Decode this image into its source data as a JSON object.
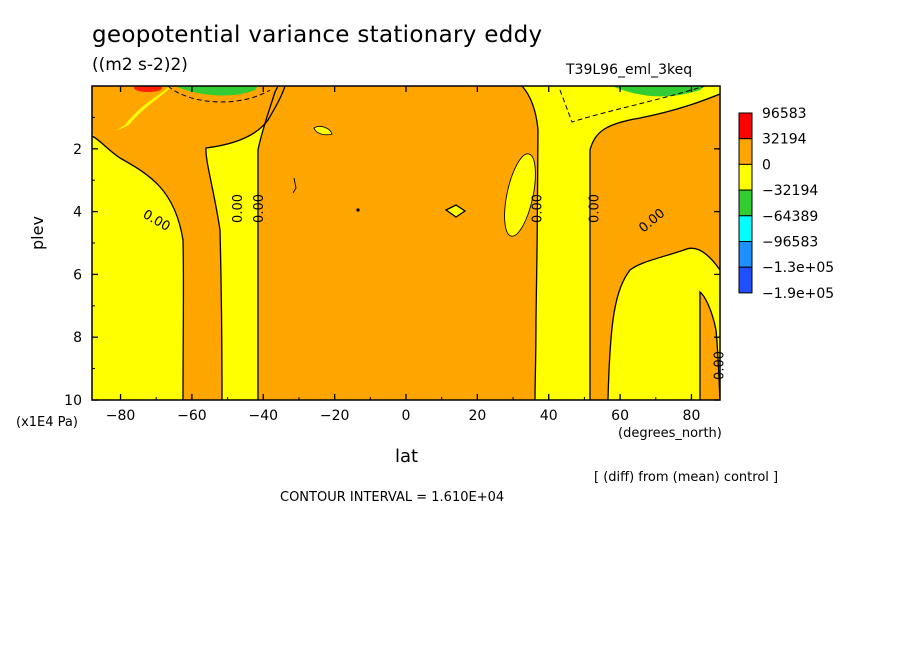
{
  "header": {
    "title": "geopotential variance stationary eddy",
    "units": "((m2 s-2)2)",
    "experiment": "T39L96_eml_3keq"
  },
  "footer": {
    "diff_note": "[ (diff) from (mean) control ]",
    "contour_interval": "CONTOUR INTERVAL = 1.610E+04"
  },
  "chart_data": {
    "type": "contour",
    "xlabel": "lat",
    "xunit": "(degrees_north)",
    "ylabel": "plev",
    "yunit": "(x1E4 Pa)",
    "xlim": [
      -88,
      88
    ],
    "ylim": [
      10,
      0
    ],
    "xticks": [
      -80,
      -60,
      -40,
      -20,
      0,
      20,
      40,
      60,
      80
    ],
    "xtick_labels": [
      "−80",
      "−60",
      "−40",
      "−20",
      "0",
      "20",
      "40",
      "60",
      "80"
    ],
    "yticks": [
      2,
      4,
      6,
      8,
      10
    ],
    "ytick_labels": [
      "2",
      "4",
      "6",
      "8",
      "10"
    ],
    "contour_labels": [
      {
        "text": "0.00",
        "lat": -70,
        "plev": 4.3
      },
      {
        "text": "0.00",
        "lat": -47,
        "plev": 3.9
      },
      {
        "text": "0.00",
        "lat": -41,
        "plev": 3.9
      },
      {
        "text": "0.00",
        "lat": 37,
        "plev": 3.9
      },
      {
        "text": "0.00",
        "lat": 53,
        "plev": 3.9
      },
      {
        "text": "0.00",
        "lat": 69,
        "plev": 4.3
      },
      {
        "text": "0.00",
        "lat": 88,
        "plev": 8.9
      }
    ],
    "colorbar": {
      "levels": [
        "96583",
        "32194",
        "0",
        "−32194",
        "−64389",
        "−96583",
        "−1.3e+05",
        "−1.9e+05"
      ],
      "colors": [
        "#ff0000",
        "#ffa500",
        "#ffff00",
        "#32cd32",
        "#00ffff",
        "#1e90ff",
        "#1e50ff"
      ]
    },
    "colors": {
      "positive": "#ffa500",
      "near_zero": "#ffff00",
      "strong_positive": "#ff2000",
      "negative": "#32cd32"
    }
  }
}
